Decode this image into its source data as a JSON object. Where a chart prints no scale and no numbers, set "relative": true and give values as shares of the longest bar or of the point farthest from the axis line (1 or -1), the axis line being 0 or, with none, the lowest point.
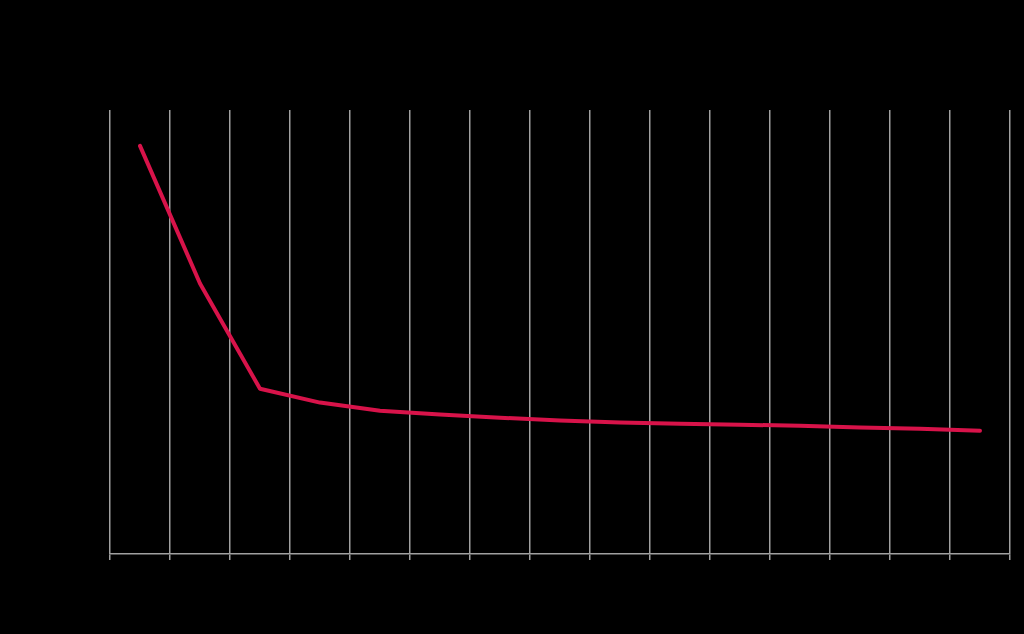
{
  "chart_data": {
    "type": "line",
    "relative": true,
    "categories": [
      null,
      null,
      null,
      null,
      null,
      null,
      null,
      null,
      null,
      null,
      null,
      null,
      null,
      null,
      null
    ],
    "series": [
      {
        "color": "#d8134a",
        "values": [
          1,
          0.663,
          0.405,
          0.371,
          0.351,
          0.342,
          0.334,
          0.327,
          0.322,
          0.319,
          0.317,
          0.314,
          0.31,
          0.307,
          0.302
        ]
      }
    ],
    "grid": "x",
    "legend": false,
    "tick_labels": false,
    "marker": "none",
    "line_style": "solid"
  }
}
